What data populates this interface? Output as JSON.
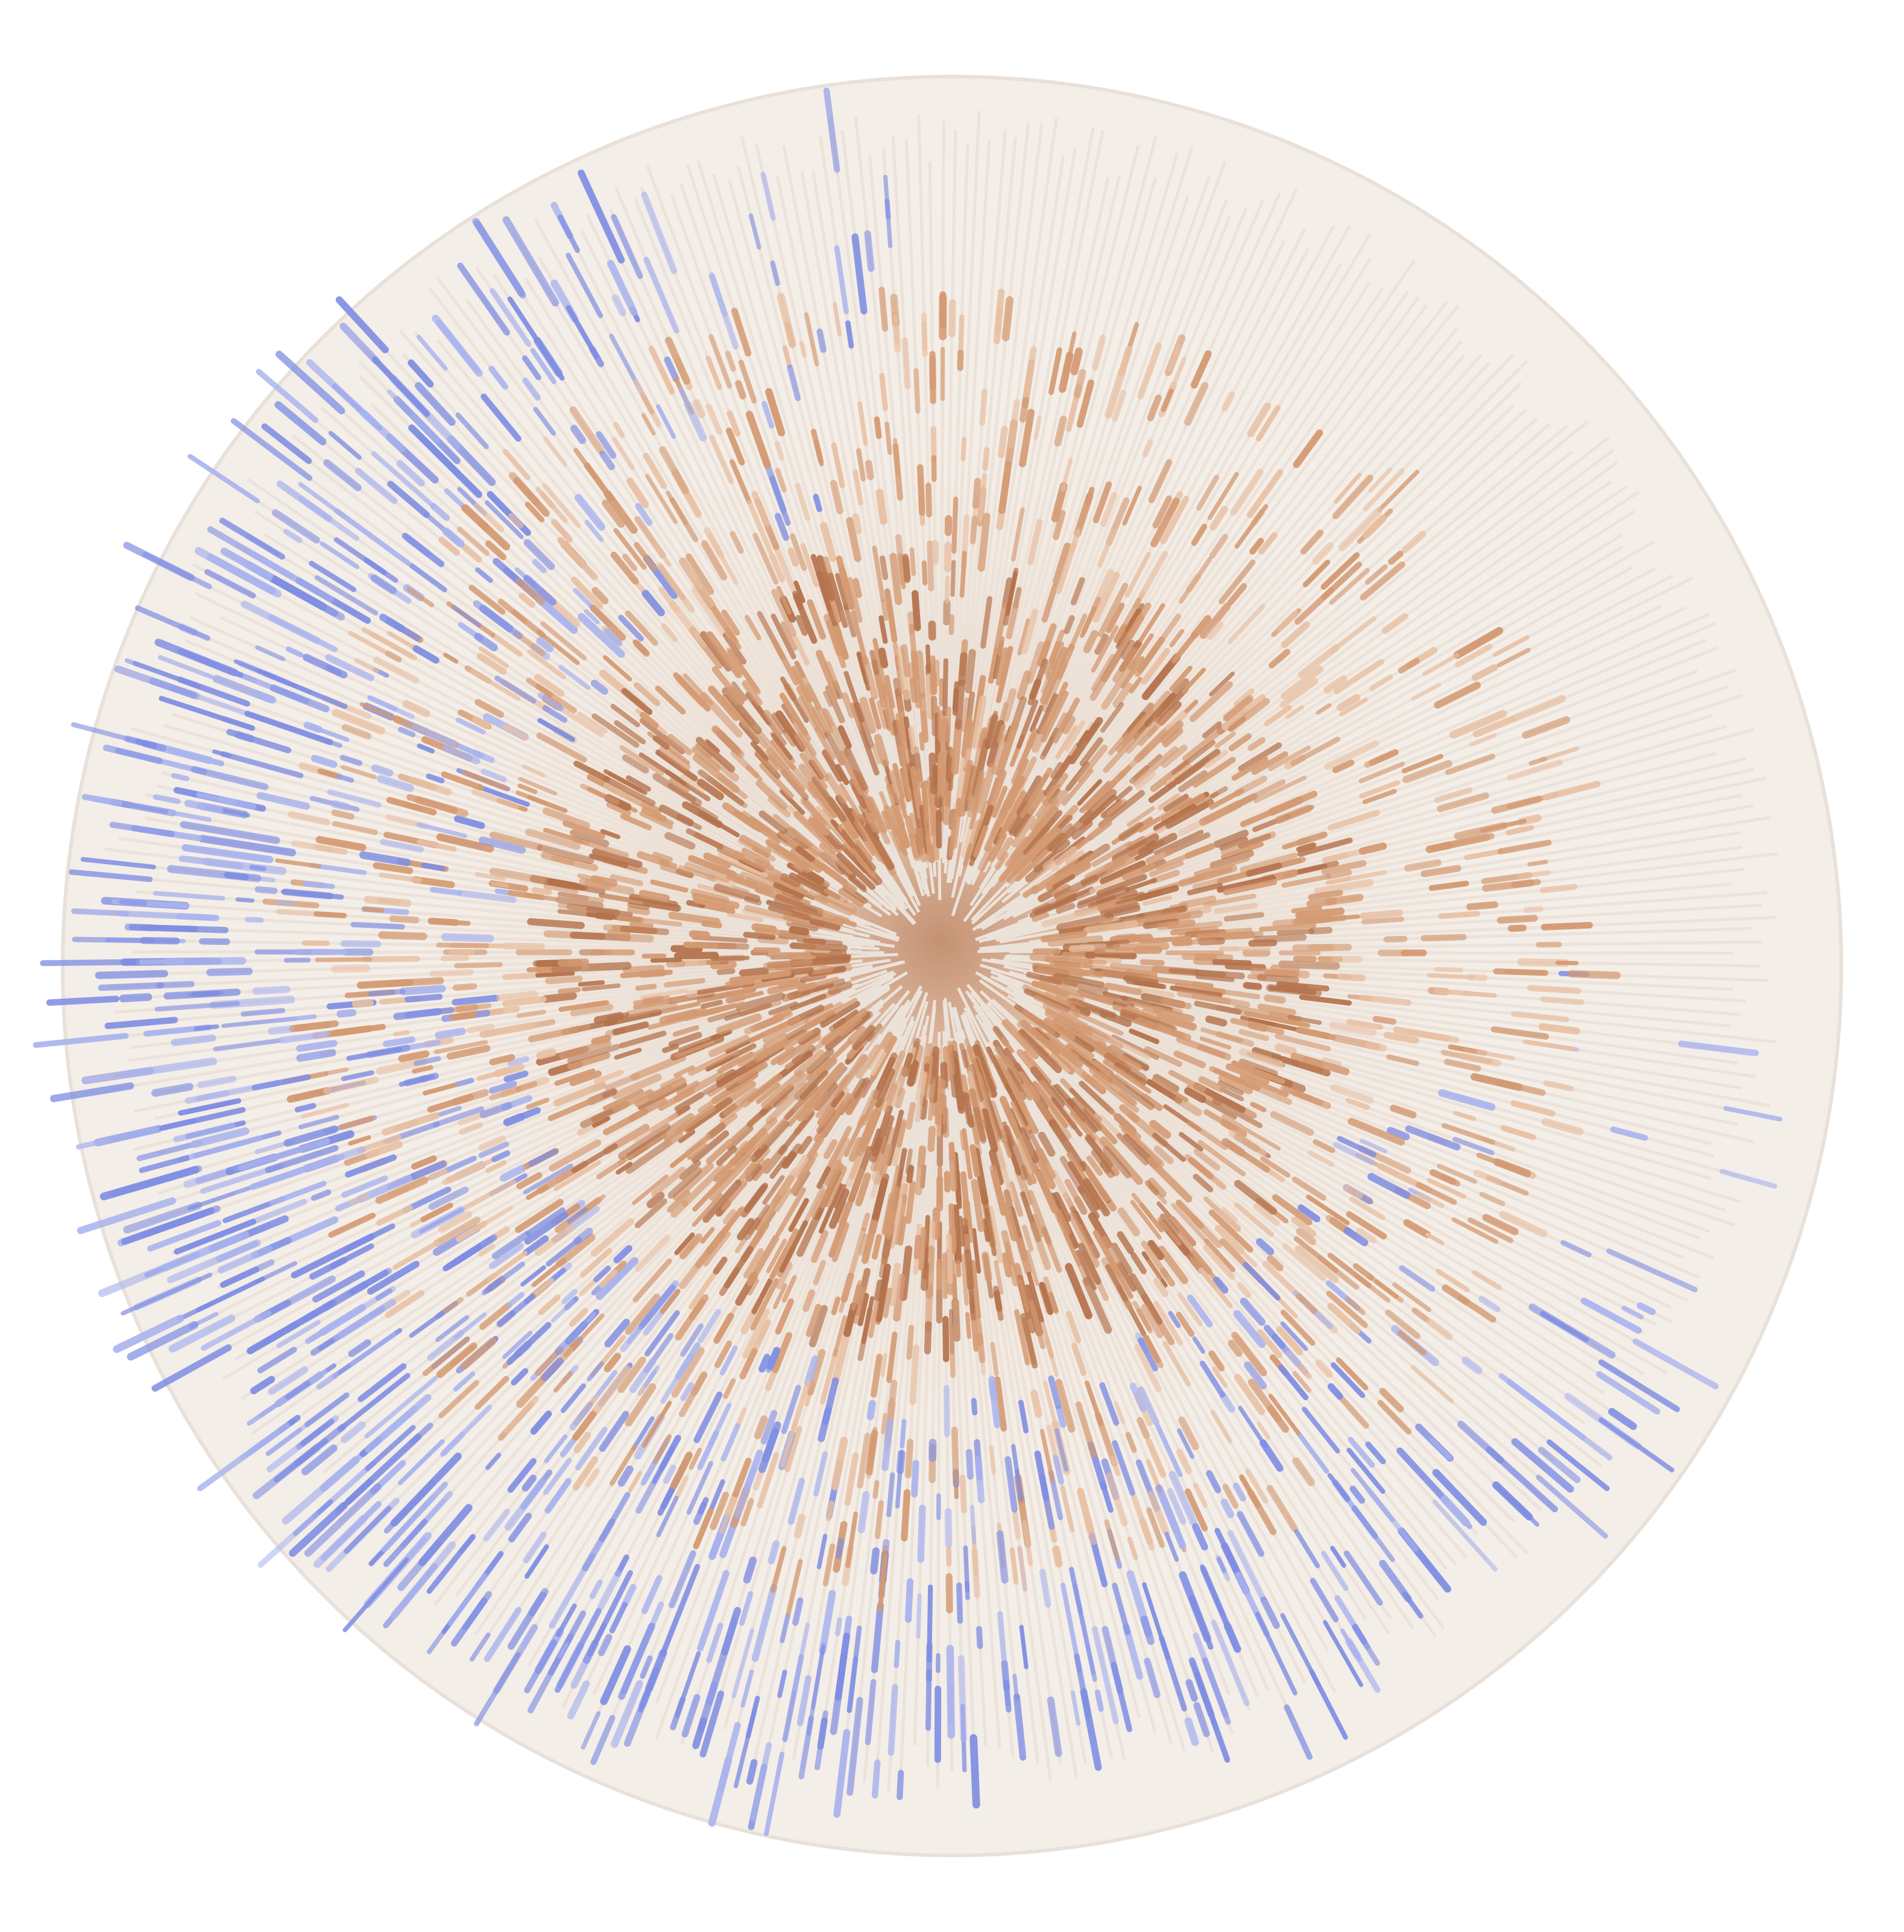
{
  "image": {
    "subject": "round-rug",
    "colors": {
      "background": "#ffffff",
      "rug_base": "#f4eee8",
      "rug_border": "#efe8e1",
      "ray_light": "#ebe2da",
      "rust_center": "#b4724b",
      "copper": "#d49a72",
      "peach": "#e8c1a4",
      "periwinkle": "#7f8ee3",
      "periwinkle_light": "#aab4ee"
    }
  }
}
